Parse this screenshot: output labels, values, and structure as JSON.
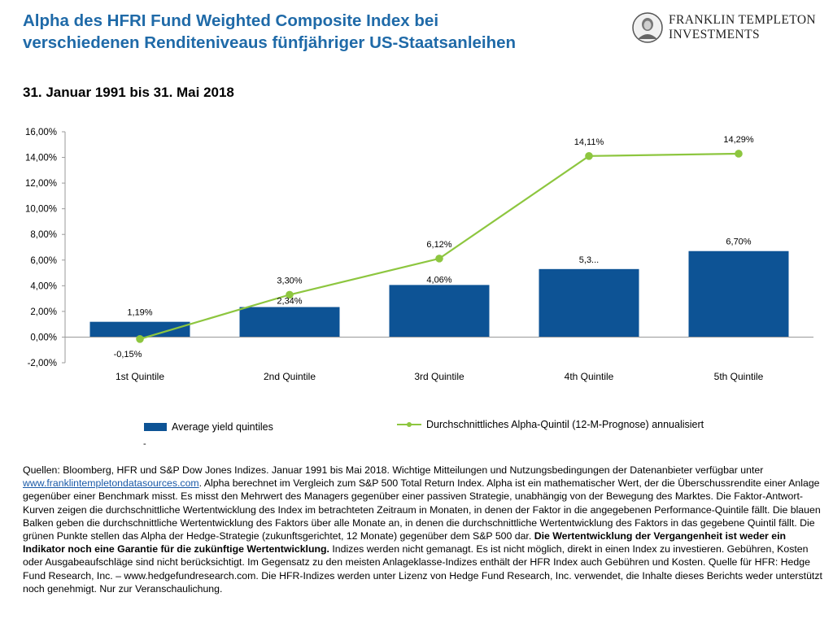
{
  "header": {
    "title_line1": "Alpha des HFRI Fund Weighted Composite Index bei",
    "title_line2": "verschiedenen Renditeniveaus fünfjähriger US-Staatsanleihen",
    "subtitle": "31. Januar 1991 bis 31. Mai 2018",
    "logo_line1": "FRANKLIN TEMPLETON",
    "logo_line2": "INVESTMENTS"
  },
  "colors": {
    "title": "#1f6aa8",
    "bars": "#0d5395",
    "line": "#8dc63f",
    "link": "#1a5aa8"
  },
  "chart_data": {
    "type": "bar",
    "categories": [
      "1st Quintile",
      "2nd Quintile",
      "3rd Quintile",
      "4th Quintile",
      "5th Quintile"
    ],
    "ylim": [
      -2,
      16
    ],
    "yticks": [
      -2,
      0,
      2,
      4,
      6,
      8,
      10,
      12,
      14,
      16
    ],
    "ytick_labels": [
      "-2,00%",
      "0,00%",
      "2,00%",
      "4,00%",
      "6,00%",
      "8,00%",
      "10,00%",
      "12,00%",
      "14,00%",
      "16,00%"
    ],
    "grid": false,
    "legend_position": "bottom",
    "series": [
      {
        "name": "Average yield quintiles",
        "type": "bar",
        "values": [
          1.19,
          2.34,
          4.06,
          5.3,
          6.7
        ],
        "labels": [
          "1,19%",
          "2,34%",
          "4,06%",
          "5,3...",
          "6,70%"
        ]
      },
      {
        "name": "Durchschnittliches Alpha-Quintil (12-M-Prognose) annualisiert",
        "type": "line",
        "values": [
          -0.15,
          3.3,
          6.12,
          14.11,
          14.29
        ],
        "labels": [
          "-0,15%",
          "3,30%",
          "6,12%",
          "14,11%",
          "14,29%"
        ]
      }
    ]
  },
  "legend": {
    "bar_label": "Average yield quintiles",
    "line_label": "Durchschnittliches Alpha-Quintil (12-M-Prognose) annualisiert",
    "dash": "-"
  },
  "footnote": {
    "p1": "Quellen:  Bloomberg, HFR und S&P Dow Jones Indizes. Januar 1991 bis Mai 2018. Wichtige Mitteilungen und Nutzungsbedingungen der Datenanbieter verfügbar unter ",
    "link": "www.franklintempletondatasources.com",
    "p2": ". Alpha berechnet im Vergleich zum S&P 500 Total Return Index. Alpha ist ein mathematischer Wert, der die Überschussrendite einer Anlage gegenüber einer Benchmark misst. Es misst den Mehrwert des Managers gegenüber einer passiven Strategie, unabhängig von der Bewegung des Marktes. Die Faktor-Antwort-Kurven zeigen die durchschnittliche Wertentwicklung des Index im betrachteten Zeitraum in Monaten, in denen der Faktor in die angegebenen Performance-Quintile fällt. Die blauen Balken geben die durchschnittliche Wertentwicklung des Faktors über alle Monate an, in denen die durchschnittliche Wertentwicklung des Faktors in das gegebene Quintil fällt. Die grünen Punkte stellen das Alpha der Hedge-Strategie (zukunftsgerichtet, 12 Monate) gegenüber dem S&P 500 dar.  ",
    "bold": "Die Wertentwicklung der Vergangenheit ist weder ein Indikator noch eine Garantie für die zukünftige Wertentwicklung.",
    "p3": " Indizes werden nicht gemanagt. Es ist nicht möglich, direkt in einen Index zu investieren. Gebühren, Kosten oder Ausgabeaufschläge sind nicht berücksichtigt. Im Gegensatz zu den meisten Anlageklasse-Indizes enthält der HFR Index auch Gebühren und Kosten. Quelle für HFR: Hedge Fund Research, Inc. – www.hedgefundresearch.com. Die HFR-Indizes werden unter Lizenz von Hedge Fund Research, Inc. verwendet, die Inhalte dieses Berichts weder unterstützt noch genehmigt. Nur zur Veranschaulichung."
  }
}
